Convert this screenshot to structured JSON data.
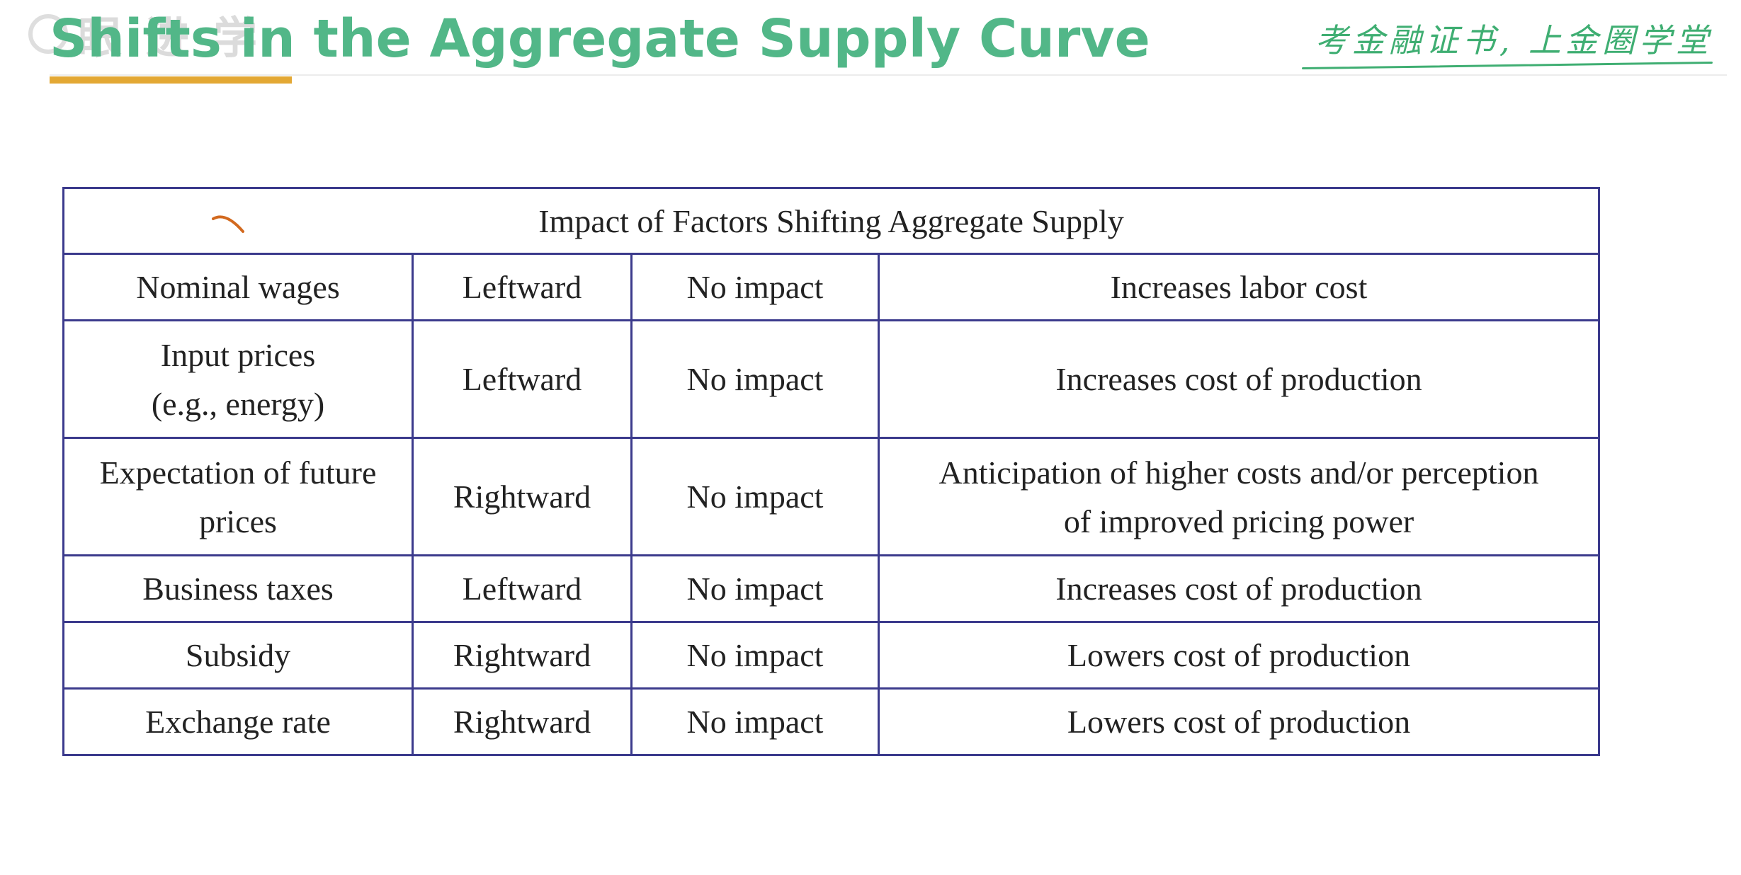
{
  "watermark": {
    "text": "眼 进 学",
    "logo_icon": "watermark-logo-icon"
  },
  "header": {
    "title": "Shifts in the Aggregate Supply Curve",
    "slogan": "考金融证书, 上金圈学堂",
    "title_color": "#52b788",
    "accent_color": "#e3a834"
  },
  "table": {
    "caption": "Impact of Factors Shifting Aggregate Supply",
    "border_color": "#3b3a8c",
    "rows": [
      {
        "factor": "Nominal wages",
        "factor_line2": "",
        "shift": "Leftward",
        "impact": "No impact",
        "reason": "Increases labor cost",
        "reason_line2": ""
      },
      {
        "factor": "Input prices",
        "factor_line2": "(e.g., energy)",
        "shift": "Leftward",
        "impact": "No impact",
        "reason": "Increases cost of production",
        "reason_line2": ""
      },
      {
        "factor": "Expectation of future",
        "factor_line2": "prices",
        "shift": "Rightward",
        "impact": "No impact",
        "reason": "Anticipation of higher costs and/or perception",
        "reason_line2": "of improved pricing power"
      },
      {
        "factor": "Business taxes",
        "factor_line2": "",
        "shift": "Leftward",
        "impact": "No impact",
        "reason": "Increases cost of production",
        "reason_line2": ""
      },
      {
        "factor": "Subsidy",
        "factor_line2": "",
        "shift": "Rightward",
        "impact": "No impact",
        "reason": "Lowers cost of production",
        "reason_line2": ""
      },
      {
        "factor": "Exchange rate",
        "factor_line2": "",
        "shift": "Rightward",
        "impact": "No impact",
        "reason": "Lowers cost of production",
        "reason_line2": ""
      }
    ]
  }
}
